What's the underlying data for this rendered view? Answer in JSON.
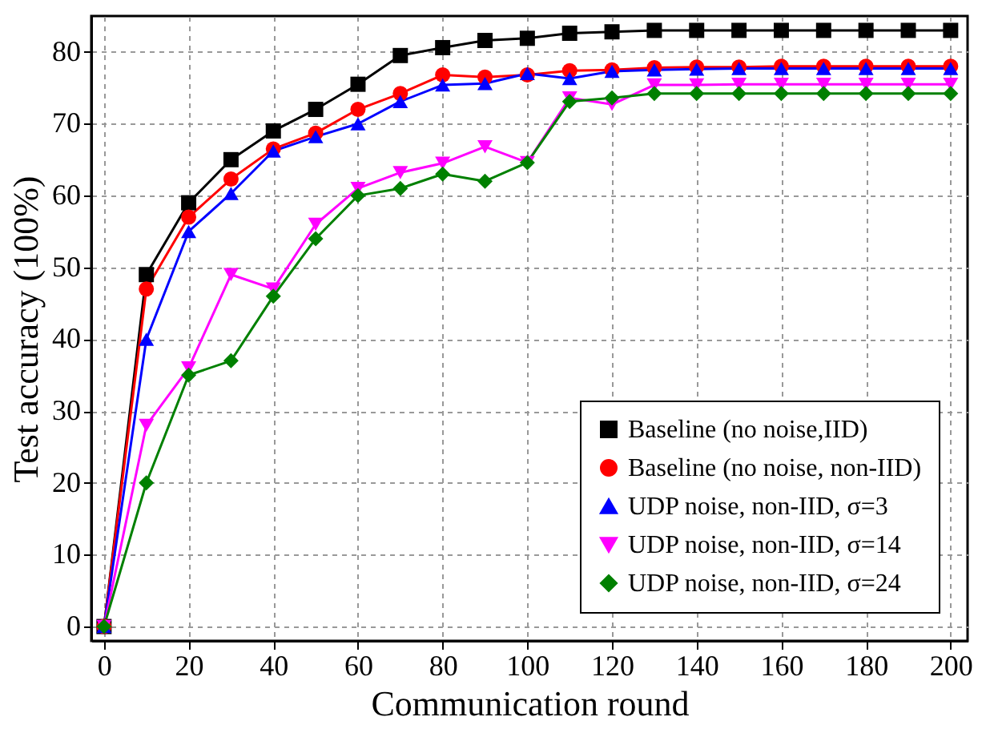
{
  "chart_data": {
    "type": "line",
    "xlabel": "Communication round",
    "ylabel": "Test accuracy (100%)",
    "x": [
      0,
      10,
      20,
      30,
      40,
      50,
      60,
      70,
      80,
      90,
      100,
      110,
      120,
      130,
      140,
      150,
      160,
      170,
      180,
      190,
      200
    ],
    "series": [
      {
        "name": "Baseline (no noise,IID)",
        "color": "#000000",
        "marker": "square",
        "values": [
          0,
          49,
          59,
          65,
          69,
          72,
          75.5,
          79.5,
          80.6,
          81.6,
          81.9,
          82.6,
          82.8,
          83,
          83,
          83,
          83,
          83,
          83,
          83,
          83
        ]
      },
      {
        "name": "Baseline (no noise, non-IID)",
        "color": "#ff0000",
        "marker": "circle",
        "values": [
          0,
          47,
          57,
          62.3,
          66.5,
          68.7,
          72,
          74.2,
          76.8,
          76.5,
          76.8,
          77.4,
          77.5,
          77.8,
          77.9,
          77.9,
          78,
          78,
          78,
          78,
          78
        ]
      },
      {
        "name": "UDP noise, non-IID, σ=3",
        "color": "#0000ff",
        "marker": "triangle",
        "values": [
          0,
          40,
          55,
          60.3,
          66.2,
          68.2,
          70,
          73.1,
          75.4,
          75.6,
          77,
          76.3,
          77.3,
          77.5,
          77.6,
          77.7,
          77.7,
          77.7,
          77.7,
          77.7,
          77.7
        ]
      },
      {
        "name": "UDP noise, non-IID, σ=14",
        "color": "#ff00ff",
        "marker": "triangle_down",
        "values": [
          0,
          28,
          36,
          49,
          47,
          56,
          61,
          63.2,
          64.5,
          66.8,
          64.6,
          73.6,
          72.7,
          75.4,
          75.4,
          75.5,
          75.5,
          75.5,
          75.5,
          75.5,
          75.5
        ]
      },
      {
        "name": "UDP noise, non-IID, σ=24",
        "color": "#008000",
        "marker": "diamond",
        "values": [
          0,
          20,
          35,
          37,
          46,
          54,
          60,
          61,
          63,
          62,
          64.6,
          73.1,
          73.6,
          74.2,
          74.2,
          74.2,
          74.2,
          74.2,
          74.2,
          74.2,
          74.2
        ]
      }
    ],
    "xlim": [
      -3,
      204
    ],
    "ylim": [
      -2,
      85
    ],
    "xticks": [
      0,
      20,
      40,
      60,
      80,
      100,
      120,
      140,
      160,
      180,
      200
    ],
    "yticks": [
      0,
      10,
      20,
      30,
      40,
      50,
      60,
      70,
      80
    ],
    "grid": true,
    "legend": "bottom right",
    "line_style": "solid"
  }
}
